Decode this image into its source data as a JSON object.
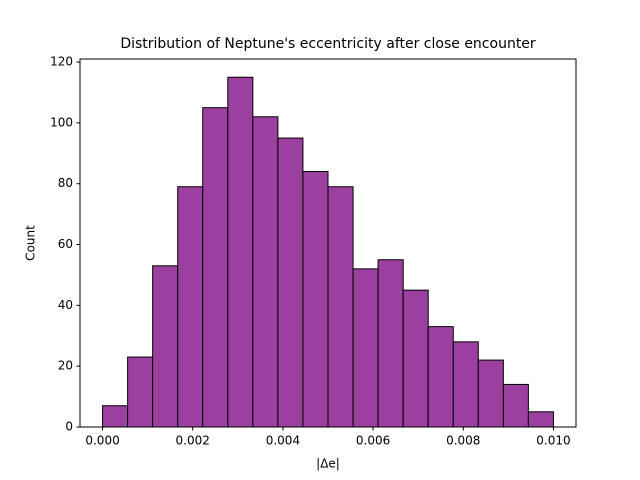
{
  "chart_data": {
    "type": "histogram",
    "title": "Distribution of Neptune's eccentricity after close encounter",
    "x_label": "|Δe|",
    "y_label": "Count",
    "bins": [
      0,
      0.000556,
      0.001111,
      0.001667,
      0.002222,
      0.002778,
      0.003333,
      0.003889,
      0.004444,
      0.005,
      0.005556,
      0.006111,
      0.006667,
      0.007222,
      0.007778,
      0.008333,
      0.008889,
      0.009444,
      0.01
    ],
    "values": [
      7,
      23,
      53,
      79,
      105,
      115,
      102,
      95,
      84,
      79,
      52,
      55,
      45,
      33,
      28,
      22,
      14,
      5
    ],
    "color": "#9c40a0",
    "edgecolor": "#000000",
    "xlim": [
      -0.0005,
      0.0105
    ],
    "xticks": [
      {
        "value": 0,
        "label": "0.000"
      },
      {
        "value": 0.002,
        "label": "0.002"
      },
      {
        "value": 0.004,
        "label": "0.004"
      },
      {
        "value": 0.006,
        "label": "0.006"
      },
      {
        "value": 0.008,
        "label": "0.008"
      },
      {
        "value": 0.01,
        "label": "0.010"
      }
    ],
    "ylim": [
      0,
      121
    ],
    "yticks": [
      0,
      20,
      40,
      60,
      80,
      100,
      120
    ],
    "grid": false
  }
}
